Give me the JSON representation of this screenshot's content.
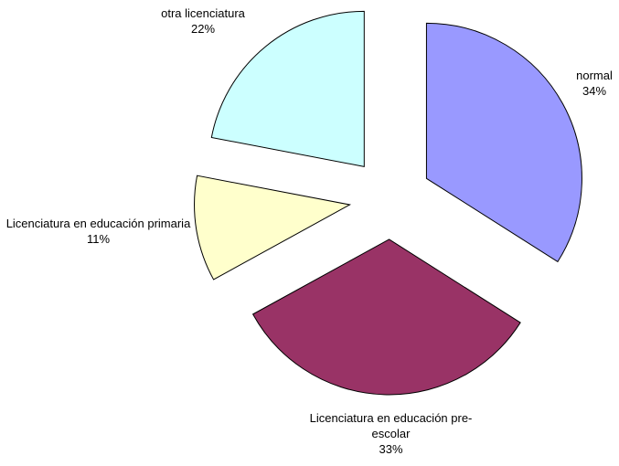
{
  "chart_data": {
    "type": "pie",
    "categories": [
      "normal",
      "Licenciatura en educación pre-escolar",
      "Licenciatura en educación primaria",
      "otra licenciatura"
    ],
    "values": [
      34,
      33,
      11,
      22
    ],
    "value_labels": [
      "34%",
      "33%",
      "11%",
      "22%"
    ],
    "colors": [
      "#9999ff",
      "#993366",
      "#ffffcc",
      "#ccffff"
    ]
  }
}
